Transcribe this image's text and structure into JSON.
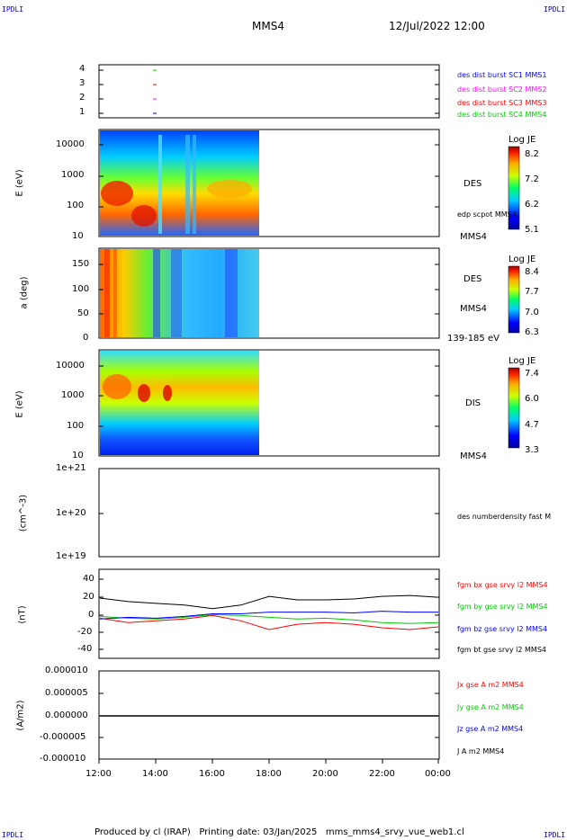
{
  "header": {
    "corner_tl": "IPDLI",
    "corner_tr": "IPDLI",
    "corner_bl": "IPDLI",
    "corner_br": "IPDLI",
    "spacecraft": "MMS4",
    "datetime": "12/Jul/2022 12:00"
  },
  "footer": {
    "text": "Produced by cl (IRAP)   Printing date: 03/Jan/2025   mms_mms4_srvy_vue_web1.cl"
  },
  "time_axis": {
    "ticks": [
      "12:00",
      "14:00",
      "16:00",
      "18:00",
      "20:00",
      "22:00",
      "00:00"
    ]
  },
  "panels": {
    "burst": {
      "yticks": [
        "4",
        "3",
        "2",
        "1"
      ],
      "legend": [
        {
          "text": "des dist burst SC1 MMS1",
          "color": "#0000ff"
        },
        {
          "text": "des dist burst SC2 MMS2",
          "color": "#ff00ff"
        },
        {
          "text": "des dist burst SC3 MMS3",
          "color": "#ff0000"
        },
        {
          "text": "des dist burst SC4 MMS4",
          "color": "#00cc00"
        }
      ]
    },
    "des_energy": {
      "ylabel": "E (eV)",
      "yticks": [
        "10000",
        "1000",
        "100",
        "10"
      ],
      "name": "DES",
      "note": "edp scpot MMS4",
      "sc": "MMS4",
      "cbar_title": "Log JE",
      "cbar_ticks": [
        "8.2",
        "7.2",
        "6.2",
        "5.1"
      ]
    },
    "des_pitch": {
      "ylabel": "a (deg)",
      "yticks": [
        "150",
        "100",
        "50",
        "0"
      ],
      "name": "DES",
      "sc": "MMS4",
      "range": "139-185 eV",
      "cbar_title": "Log JE",
      "cbar_ticks": [
        "8.4",
        "7.7",
        "7.0",
        "6.3"
      ]
    },
    "dis_energy": {
      "ylabel": "E (eV)",
      "yticks": [
        "10000",
        "1000",
        "100",
        "10"
      ],
      "name": "DIS",
      "sc": "MMS4",
      "cbar_title": "Log JE",
      "cbar_ticks": [
        "7.4",
        "6.0",
        "4.7",
        "3.3"
      ]
    },
    "density": {
      "ylabel": "(cm^-3)",
      "yticks": [
        "1e+21",
        "1e+20",
        "1e+19"
      ],
      "legend": "des numberdensity fast M"
    },
    "fgm": {
      "ylabel": "(nT)",
      "yticks": [
        "40",
        "20",
        "0",
        "-20",
        "-40"
      ],
      "legend": [
        {
          "text": "fgm bx gse srvy l2 MMS4",
          "color": "#ff0000"
        },
        {
          "text": "fgm by gse srvy l2 MMS4",
          "color": "#00cc00"
        },
        {
          "text": "fgm bz gse srvy l2 MMS4",
          "color": "#0000ff"
        },
        {
          "text": "fgm bt gse srvy l2 MMS4",
          "color": "#000000"
        }
      ]
    },
    "current": {
      "ylabel": "(A/m2)",
      "yticks": [
        "0.000010",
        "0.000005",
        "0.000000",
        "-0.000005",
        "-0.000010"
      ],
      "legend": [
        {
          "text": "Jx gse A m2 MMS4",
          "color": "#ff0000"
        },
        {
          "text": "Jy gse A m2 MMS4",
          "color": "#00cc00"
        },
        {
          "text": "Jz gse A m2 MMS4",
          "color": "#0000ff"
        },
        {
          "text": "J A m2 MMS4",
          "color": "#000000"
        }
      ]
    }
  },
  "chart_data": {
    "type": "line",
    "x": [
      "12:00",
      "13:00",
      "14:00",
      "15:00",
      "16:00",
      "17:00",
      "18:00",
      "19:00",
      "20:00",
      "21:00",
      "22:00",
      "23:00",
      "00:00"
    ],
    "series": [
      {
        "name": "fgm bx gse srvy l2 MMS4",
        "values": [
          -5,
          -10,
          -8,
          -6,
          -2,
          -8,
          -18,
          -12,
          -10,
          -12,
          -16,
          -18,
          -15
        ]
      },
      {
        "name": "fgm by gse srvy l2 MMS4",
        "values": [
          -3,
          -5,
          -6,
          -4,
          -1,
          -2,
          -4,
          -6,
          -5,
          -7,
          -10,
          -11,
          -10
        ]
      },
      {
        "name": "fgm bz gse srvy l2 MMS4",
        "values": [
          -6,
          -4,
          -5,
          -3,
          0,
          0,
          2,
          2,
          2,
          1,
          3,
          2,
          2
        ]
      },
      {
        "name": "fgm bt gse srvy l2 MMS4",
        "values": [
          18,
          14,
          12,
          10,
          6,
          10,
          20,
          16,
          16,
          17,
          20,
          21,
          19
        ]
      }
    ],
    "ylim": [
      -50,
      50
    ],
    "xlabel": "",
    "ylabel": "(nT)"
  }
}
